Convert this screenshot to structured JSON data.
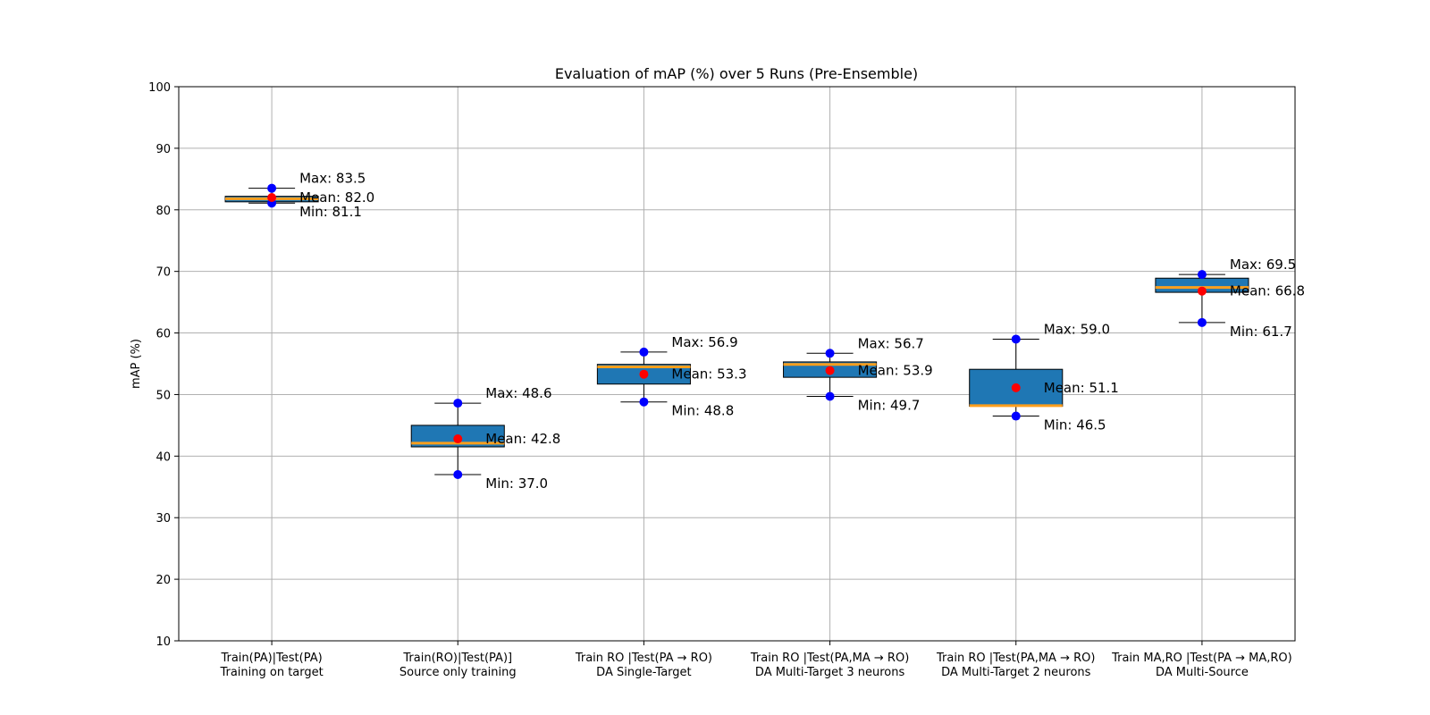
{
  "chart_data": {
    "type": "box",
    "title": "Evaluation of mAP (%) over 5 Runs (Pre-Ensemble)",
    "xlabel": "",
    "ylabel": "mAP (%)",
    "ylim": [
      10,
      100
    ],
    "yticks": [
      10,
      20,
      30,
      40,
      50,
      60,
      70,
      80,
      90,
      100
    ],
    "grid": true,
    "categories": [
      [
        "Train(PA)|Test(PA)",
        "Training on target"
      ],
      [
        "Train(RO)|Test(PA)]",
        "Source only training"
      ],
      [
        "Train RO |Test(PA → RO)",
        "DA Single-Target"
      ],
      [
        "Train RO |Test(PA,MA → RO)",
        "DA Multi-Target 3 neurons"
      ],
      [
        "Train RO |Test(PA,MA → RO)",
        "DA Multi-Target 2 neurons"
      ],
      [
        "Train MA,RO |Test(PA → MA,RO)",
        "DA Multi-Source"
      ]
    ],
    "boxes": [
      {
        "min": 81.1,
        "q1": 81.3,
        "median": 81.8,
        "q3": 82.2,
        "max": 83.5,
        "mean": 82.0
      },
      {
        "min": 37.0,
        "q1": 41.5,
        "median": 42.1,
        "q3": 45.0,
        "max": 48.6,
        "mean": 42.8
      },
      {
        "min": 48.8,
        "q1": 51.7,
        "median": 54.5,
        "q3": 54.9,
        "max": 56.9,
        "mean": 53.3
      },
      {
        "min": 49.7,
        "q1": 52.8,
        "median": 54.9,
        "q3": 55.3,
        "max": 56.7,
        "mean": 53.9
      },
      {
        "min": 46.5,
        "q1": 48.1,
        "median": 48.2,
        "q3": 54.1,
        "max": 59.0,
        "mean": 51.1
      },
      {
        "min": 61.7,
        "q1": 66.6,
        "median": 67.4,
        "q3": 68.9,
        "max": 69.5,
        "mean": 66.8
      }
    ],
    "annotations": {
      "max_prefix": "Max: ",
      "mean_prefix": "Mean: ",
      "min_prefix": "Min: "
    },
    "colors": {
      "box_fill": "#1f77b4",
      "median": "#ff9f1c",
      "mean_marker": "#ff0000",
      "minmax_marker": "#0000ff",
      "edge": "#000000",
      "grid": "#b0b0b0"
    }
  }
}
